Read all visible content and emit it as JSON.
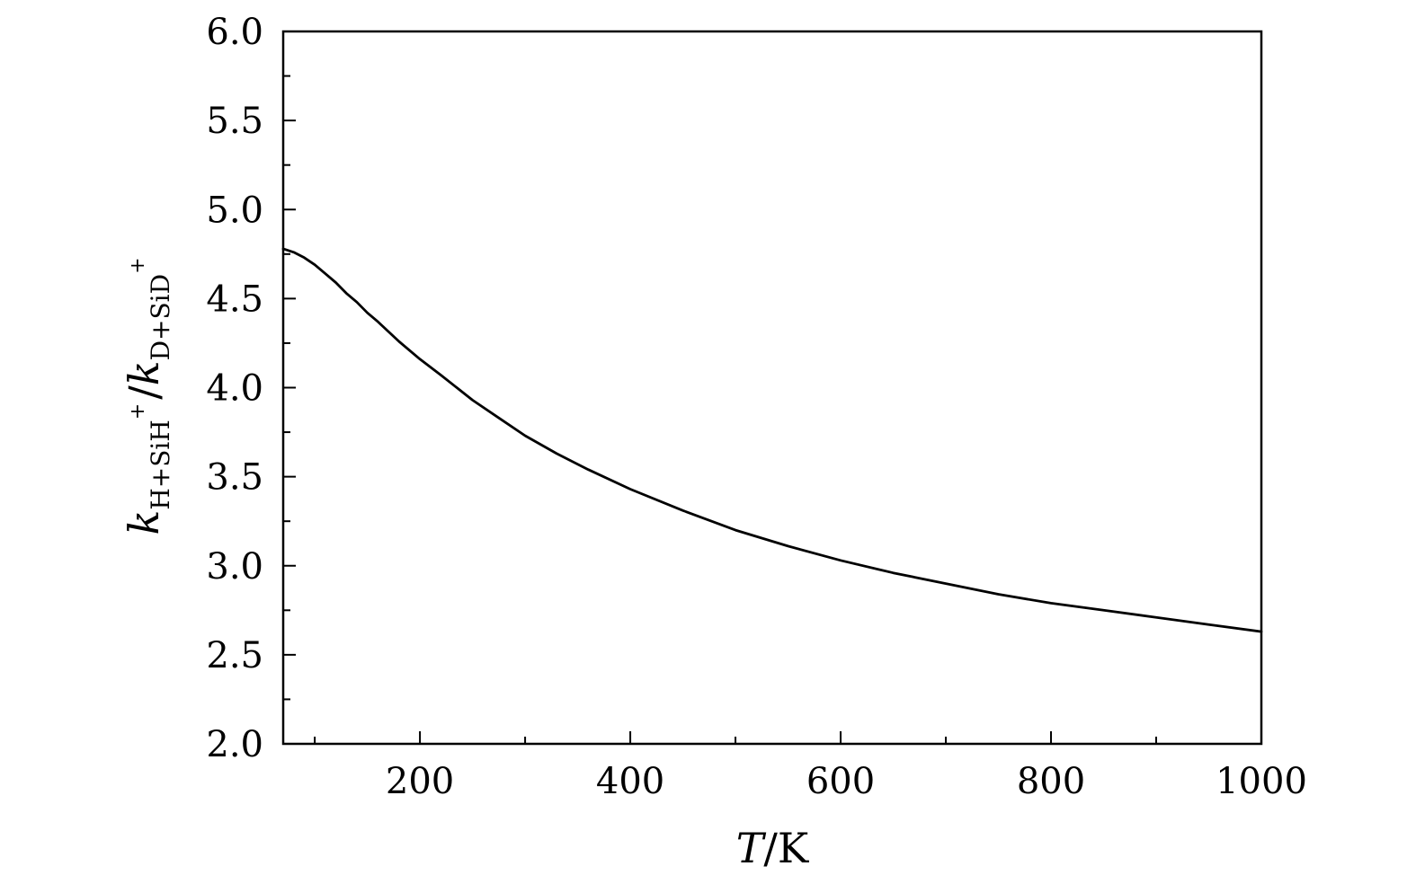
{
  "chart_data": {
    "type": "line",
    "title": "",
    "xlabel": {
      "var": "T",
      "unit": "K"
    },
    "ylabel": {
      "num_var": "k",
      "num_sub": "H+SiH",
      "den_var": "k",
      "den_sub": "D+SiD",
      "sup": "+"
    },
    "xlim": [
      70,
      1000
    ],
    "ylim": [
      2.0,
      6.0
    ],
    "x_ticks": [
      200,
      400,
      600,
      800,
      1000
    ],
    "x_tick_labels": [
      "200",
      "400",
      "600",
      "800",
      "1000"
    ],
    "x_minor_ticks": [
      100,
      300,
      500,
      700,
      900
    ],
    "y_ticks": [
      2.0,
      2.5,
      3.0,
      3.5,
      4.0,
      4.5,
      5.0,
      5.5,
      6.0
    ],
    "y_tick_labels": [
      "2.0",
      "2.5",
      "3.0",
      "3.5",
      "4.0",
      "4.5",
      "5.0",
      "5.5",
      "6.0"
    ],
    "y_minor_ticks": [
      2.25,
      2.75,
      3.25,
      3.75,
      4.25,
      4.75,
      5.25,
      5.75
    ],
    "grid": false,
    "legend": "none",
    "line_color": "#000000",
    "series": [
      {
        "x": [
          70,
          80,
          90,
          100,
          110,
          120,
          130,
          140,
          150,
          160,
          180,
          200,
          220,
          250,
          275,
          300,
          330,
          360,
          400,
          450,
          500,
          550,
          600,
          650,
          700,
          750,
          800,
          850,
          900,
          950,
          1000
        ],
        "y": [
          4.78,
          4.76,
          4.73,
          4.69,
          4.64,
          4.59,
          4.53,
          4.48,
          4.42,
          4.37,
          4.26,
          4.16,
          4.07,
          3.93,
          3.83,
          3.73,
          3.63,
          3.54,
          3.43,
          3.31,
          3.2,
          3.11,
          3.03,
          2.96,
          2.9,
          2.84,
          2.79,
          2.75,
          2.71,
          2.67,
          2.63
        ]
      }
    ]
  }
}
